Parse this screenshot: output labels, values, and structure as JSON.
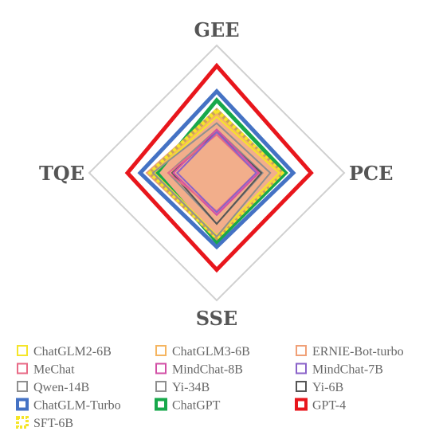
{
  "chart_data": {
    "type": "radar",
    "title": "",
    "axes": [
      "GEE",
      "PCE",
      "SSE",
      "TQE"
    ],
    "range": [
      0,
      100
    ],
    "grid": true,
    "legend_position": "bottom",
    "series": [
      {
        "name": "ChatGLM2-6B",
        "color": "#f5e52a",
        "style": "solid",
        "fill": false,
        "values": [
          44,
          49,
          49,
          49
        ]
      },
      {
        "name": "ChatGLM3-6B",
        "color": "#f5b560",
        "style": "solid",
        "fill": false,
        "values": [
          46,
          50,
          50,
          50
        ]
      },
      {
        "name": "ERNIE-Bot-turbo",
        "color": "#f0a077",
        "style": "solid",
        "fill": true,
        "values": [
          49,
          52,
          52,
          55
        ]
      },
      {
        "name": "MeChat",
        "color": "#e86a86",
        "style": "solid",
        "fill": false,
        "values": [
          30,
          31,
          30,
          38
        ]
      },
      {
        "name": "MindChat-8B",
        "color": "#d24fa6",
        "style": "solid",
        "fill": false,
        "values": [
          34,
          33,
          33,
          34
        ]
      },
      {
        "name": "MindChat-7B",
        "color": "#8a62c9",
        "style": "solid",
        "fill": false,
        "values": [
          32,
          31,
          31,
          31
        ]
      },
      {
        "name": "Qwen-14B",
        "color": "#8f8f8f",
        "style": "solid",
        "fill": false,
        "values": [
          39,
          42,
          50,
          50
        ]
      },
      {
        "name": "Yi-34B",
        "color": "#8f8f8f",
        "style": "solid",
        "fill": false,
        "values": [
          34,
          36,
          40,
          38
        ]
      },
      {
        "name": "Yi-6B",
        "color": "#555555",
        "style": "solid",
        "fill": false,
        "values": [
          32,
          35,
          40,
          35
        ]
      },
      {
        "name": "ChatGLM-Turbo",
        "color": "#4472c4",
        "style": "solid",
        "fill": false,
        "values": [
          64,
          60,
          58,
          60
        ]
      },
      {
        "name": "ChatGPT",
        "color": "#17a84b",
        "style": "solid",
        "fill": false,
        "values": [
          57,
          54,
          54,
          47
        ]
      },
      {
        "name": "GPT-4",
        "color": "#e8161c",
        "style": "solid",
        "fill": false,
        "values": [
          84,
          74,
          76,
          70
        ]
      },
      {
        "name": "SFT-6B",
        "color": "#f5e52a",
        "style": "dashed",
        "fill": false,
        "values": [
          49,
          51,
          51,
          52
        ]
      }
    ]
  }
}
